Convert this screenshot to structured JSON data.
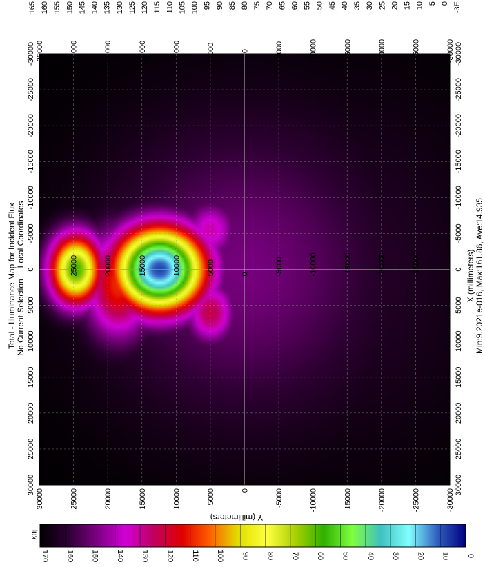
{
  "chart_data": {
    "type": "heatmap",
    "title": "Total - Illuminance Map for Incident Flux",
    "subtitle_left": "No Current Selection",
    "subtitle_right": "Local Coordinates",
    "xlabel": "X (millimeters)",
    "ylabel": "Y (millimeters)",
    "stats": "Min:9.2021e-016, Max:161.86, Ave:14.935",
    "xlim": [
      -30000,
      30000
    ],
    "ylim": [
      -30000,
      30000
    ],
    "x_ticks": [
      "-30000",
      "-25000",
      "-20000",
      "-15000",
      "-10000",
      "-5000",
      "0",
      "5000",
      "10000",
      "15000",
      "20000",
      "25000",
      "30000"
    ],
    "y_ticks": [
      "-30000",
      "-25000",
      "-20000",
      "-15000",
      "-10000",
      "-5000",
      "0",
      "5000",
      "10000",
      "15000",
      "20000",
      "25000",
      "30000"
    ],
    "inner_y_labels": [
      "-30000",
      "-25000",
      "-20000",
      "-15000",
      "-10000",
      "-5000",
      "0",
      "5000",
      "10000",
      "15000",
      "20000",
      "25000",
      "30000"
    ],
    "grid": true,
    "colorbar": {
      "unit": "lux",
      "min": 0,
      "max": 170,
      "ticks": [
        "0",
        "10",
        "20",
        "30",
        "40",
        "50",
        "60",
        "70",
        "80",
        "90",
        "100",
        "110",
        "120",
        "130",
        "140",
        "150",
        "160",
        "170"
      ],
      "colors": [
        "#000000",
        "#2e0033",
        "#7a0080",
        "#d000d6",
        "#c00060",
        "#e00000",
        "#ff6000",
        "#e0e000",
        "#ffff40",
        "#a8d000",
        "#30b000",
        "#80ff40",
        "#40c0c0",
        "#80ffff",
        "#3060c0",
        "#000080"
      ]
    },
    "scale_strip": {
      "labels": [
        "165",
        "160",
        "155",
        "150",
        "145",
        "140",
        "135",
        "130",
        "125",
        "120",
        "115",
        "110",
        "105",
        "100",
        "95",
        "90",
        "85",
        "80",
        "75",
        "70",
        "65",
        "60",
        "55",
        "50",
        "45",
        "40",
        "35",
        "30",
        "25",
        "20",
        "15",
        "10",
        "5",
        "0",
        "-3E"
      ]
    },
    "hotspots": [
      {
        "x": 0,
        "y": 12500,
        "peak": 161.86,
        "sx": 4200,
        "sy": 4800
      },
      {
        "x": 0,
        "y": 24800,
        "peak": 112,
        "sx": 3600,
        "sy": 2800
      },
      {
        "x": 2000,
        "y": 18500,
        "peak": 62,
        "sx": 5500,
        "sy": 3600
      },
      {
        "x": 6000,
        "y": 5000,
        "peak": 48,
        "sx": 3200,
        "sy": 2600
      },
      {
        "x": -5500,
        "y": 5000,
        "peak": 38,
        "sx": 3000,
        "sy": 2800
      },
      {
        "x": 0,
        "y": 0,
        "peak": 22,
        "sx": 15000,
        "sy": 15000
      },
      {
        "x": 0,
        "y": -15000,
        "peak": 9,
        "sx": 18000,
        "sy": 14000
      }
    ]
  }
}
